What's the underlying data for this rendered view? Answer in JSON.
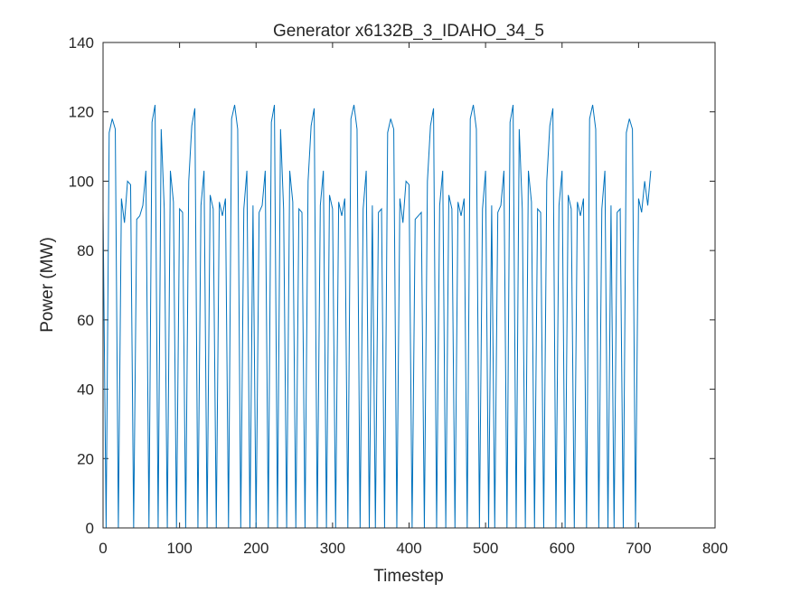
{
  "chart_data": {
    "type": "line",
    "title": "Generator x6132B_3_IDAHO_34_5",
    "xlabel": "Timestep",
    "ylabel": "Power (MW)",
    "xlim": [
      0,
      800
    ],
    "xticks": [
      0,
      100,
      200,
      300,
      400,
      500,
      600,
      700,
      800
    ],
    "ylim": [
      0,
      140
    ],
    "yticks": [
      0,
      20,
      40,
      60,
      80,
      100,
      120,
      140
    ],
    "x": [
      0,
      4,
      8,
      12,
      16,
      20,
      24,
      28,
      32,
      36,
      40,
      44,
      48,
      52,
      56,
      60,
      64,
      68,
      72,
      76,
      80,
      84,
      88,
      92,
      96,
      100,
      104,
      108,
      112,
      116,
      120,
      124,
      128,
      132,
      136,
      140,
      144,
      148,
      152,
      156,
      160,
      164,
      168,
      172,
      176,
      180,
      184,
      188,
      192,
      196,
      200,
      204,
      208,
      212,
      216,
      220,
      224,
      228,
      232,
      236,
      240,
      244,
      248,
      252,
      256,
      260,
      264,
      268,
      272,
      276,
      280,
      284,
      288,
      292,
      296,
      300,
      304,
      308,
      312,
      316,
      320,
      324,
      328,
      332,
      336,
      340,
      344,
      348,
      352,
      356,
      360,
      364,
      368,
      372,
      376,
      380,
      384,
      388,
      392,
      396,
      400,
      404,
      408,
      412,
      416,
      420,
      424,
      428,
      432,
      436,
      440,
      444,
      448,
      452,
      456,
      460,
      464,
      468,
      472,
      476,
      480,
      484,
      488,
      492,
      496,
      500,
      504,
      508,
      512,
      516,
      520,
      524,
      528,
      532,
      536,
      540,
      544,
      548,
      552,
      556,
      560,
      564,
      568,
      572,
      576,
      580,
      584,
      588,
      592,
      596,
      600,
      604,
      608,
      612,
      616,
      620,
      624,
      628,
      632,
      636,
      640,
      644,
      648,
      652,
      656,
      660,
      664,
      668,
      672,
      676,
      680,
      684,
      688,
      692,
      696,
      700,
      704,
      708,
      712,
      716
    ],
    "series": [
      {
        "name": "Power",
        "color": "#0072BD",
        "values": [
          92,
          0,
          114,
          118,
          115,
          0,
          95,
          88,
          100,
          99,
          0,
          89,
          90,
          93,
          103,
          0,
          117,
          122,
          0,
          115,
          92,
          0,
          103,
          94,
          0,
          92,
          91,
          0,
          100,
          116,
          121,
          0,
          93,
          103,
          0,
          96,
          92,
          0,
          94,
          90,
          95,
          0,
          118,
          122,
          115,
          0,
          92,
          103,
          0,
          93,
          0,
          91,
          93,
          103,
          0,
          117,
          122,
          0,
          115,
          92,
          0,
          103,
          94,
          0,
          92,
          91,
          0,
          100,
          116,
          121,
          0,
          93,
          103,
          0,
          96,
          92,
          0,
          94,
          90,
          95,
          0,
          118,
          122,
          115,
          0,
          92,
          103,
          0,
          93,
          0,
          91,
          92,
          0,
          114,
          118,
          115,
          0,
          95,
          88,
          100,
          99,
          0,
          89,
          90,
          91,
          0,
          100,
          116,
          121,
          0,
          93,
          103,
          0,
          96,
          92,
          0,
          94,
          90,
          95,
          0,
          118,
          122,
          115,
          0,
          92,
          103,
          0,
          93,
          0,
          91,
          93,
          103,
          0,
          117,
          122,
          0,
          115,
          92,
          0,
          103,
          94,
          0,
          92,
          91,
          0,
          100,
          116,
          121,
          0,
          93,
          103,
          0,
          96,
          92,
          0,
          94,
          90,
          95,
          0,
          118,
          122,
          115,
          0,
          92,
          103,
          0,
          93,
          0,
          91,
          92,
          0,
          114,
          118,
          115,
          0,
          95,
          91,
          100,
          93,
          103
        ]
      }
    ]
  }
}
